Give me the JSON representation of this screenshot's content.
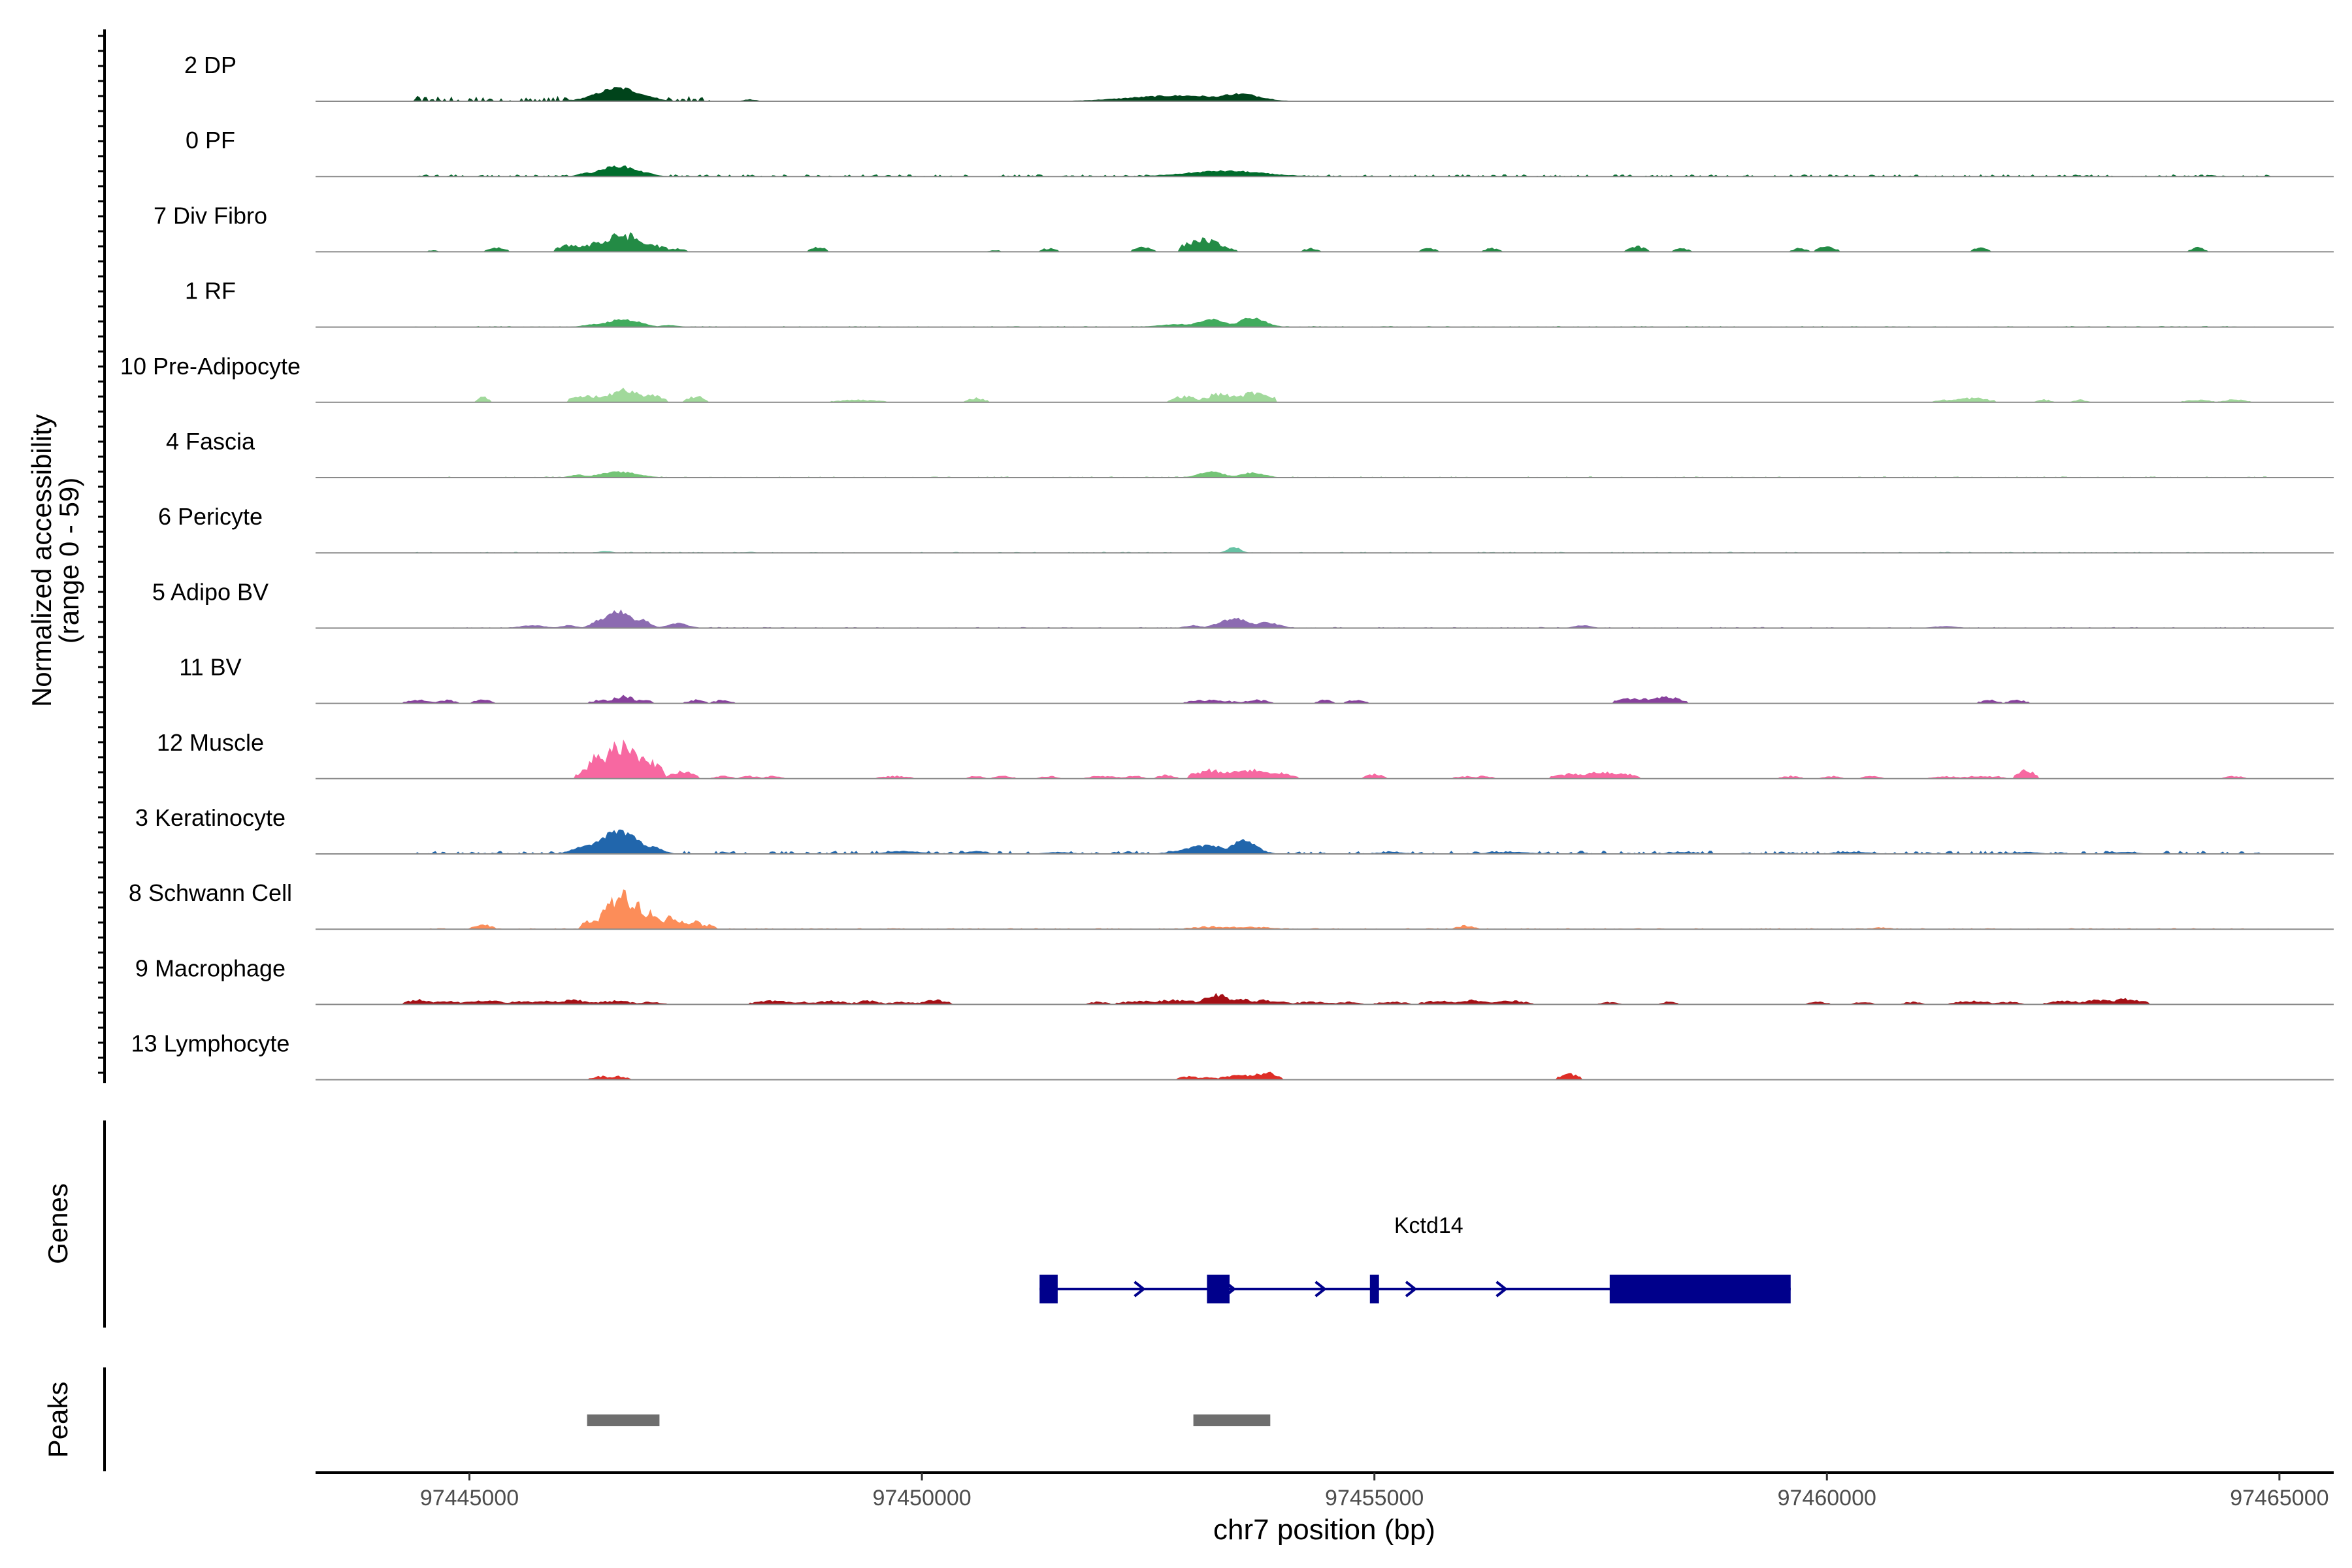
{
  "chart_data": {
    "type": "area",
    "title": "",
    "ylabel_line1": "Normalized accessibility",
    "ylabel_line2": "(range 0 - 59)",
    "xlabel": "chr7 position (bp)",
    "xlim": [
      97443300,
      97465600
    ],
    "ylim": [
      0,
      59
    ],
    "x_ticks": [
      97445000,
      97450000,
      97455000,
      97460000,
      97465000
    ],
    "x_tick_labels": [
      "97445000",
      "97450000",
      "97455000",
      "97460000",
      "97465000"
    ],
    "grid": false,
    "tracks": [
      {
        "name": "2 DP",
        "color": "#00441b",
        "smooth": true,
        "features": [
          [
            97444400,
            97447700,
            5
          ],
          [
            97446650,
            500,
            14
          ],
          [
            97446400,
            200,
            6
          ],
          [
            97446950,
            250,
            6
          ],
          [
            97452850,
            1200,
            6
          ],
          [
            97453500,
            500,
            8
          ],
          [
            97452400,
            200,
            2
          ],
          [
            97448100,
            150,
            2
          ]
        ]
      },
      {
        "name": "0 PF",
        "color": "#006d2c",
        "smooth": true,
        "features": [
          [
            97444400,
            97464900,
            2
          ],
          [
            97446650,
            450,
            11
          ],
          [
            97446300,
            200,
            4
          ],
          [
            97446950,
            200,
            4
          ],
          [
            97453350,
            900,
            6
          ],
          [
            97453600,
            300,
            4
          ]
        ]
      },
      {
        "name": "7 Div Fibro",
        "color": "#238b45",
        "smooth": false,
        "features": [
          [
            97446150,
            250,
            8
          ],
          [
            97446700,
            300,
            20
          ],
          [
            97446400,
            200,
            10
          ],
          [
            97447000,
            250,
            8
          ],
          [
            97447300,
            120,
            4
          ],
          [
            97445300,
            150,
            5
          ],
          [
            97448850,
            120,
            6
          ],
          [
            97453100,
            300,
            14
          ],
          [
            97453300,
            200,
            6
          ],
          [
            97452450,
            150,
            5
          ],
          [
            97451400,
            120,
            4
          ],
          [
            97454300,
            120,
            4
          ],
          [
            97455600,
            120,
            4
          ],
          [
            97456300,
            120,
            4
          ],
          [
            97457900,
            150,
            6
          ],
          [
            97458400,
            120,
            4
          ],
          [
            97459700,
            120,
            4
          ],
          [
            97460000,
            150,
            6
          ],
          [
            97461700,
            120,
            5
          ],
          [
            97464100,
            120,
            5
          ],
          [
            97444600,
            80,
            2
          ],
          [
            97450800,
            100,
            2
          ]
        ]
      },
      {
        "name": "1 RF",
        "color": "#41ab5d",
        "smooth": true,
        "features": [
          [
            97444400,
            97464900,
            1
          ],
          [
            97446700,
            400,
            8
          ],
          [
            97446400,
            300,
            3
          ],
          [
            97453200,
            350,
            8
          ],
          [
            97453650,
            300,
            10
          ],
          [
            97452850,
            500,
            3
          ],
          [
            97447200,
            200,
            2
          ]
        ]
      },
      {
        "name": "10 Pre-Adipocyte",
        "color": "#a1d99b",
        "smooth": false,
        "features": [
          [
            97446700,
            300,
            14
          ],
          [
            97446300,
            250,
            8
          ],
          [
            97447000,
            200,
            8
          ],
          [
            97446500,
            150,
            6
          ],
          [
            97447500,
            150,
            7
          ],
          [
            97445150,
            100,
            6
          ],
          [
            97449300,
            350,
            3
          ],
          [
            97450600,
            150,
            5
          ],
          [
            97452900,
            200,
            7
          ],
          [
            97453300,
            250,
            10
          ],
          [
            97453700,
            250,
            12
          ],
          [
            97453500,
            150,
            8
          ],
          [
            97461600,
            300,
            5
          ],
          [
            97461300,
            150,
            3
          ],
          [
            97462400,
            120,
            3
          ],
          [
            97462800,
            120,
            3
          ],
          [
            97464100,
            200,
            3
          ],
          [
            97464500,
            200,
            3
          ]
        ]
      },
      {
        "name": "4 Fascia",
        "color": "#74c476",
        "smooth": true,
        "features": [
          [
            97444400,
            97464900,
            1
          ],
          [
            97446650,
            450,
            6
          ],
          [
            97446200,
            200,
            3
          ],
          [
            97453200,
            300,
            6
          ],
          [
            97453650,
            300,
            5
          ]
        ]
      },
      {
        "name": "6 Pericyte",
        "color": "#66c2a4",
        "smooth": true,
        "features": [
          [
            97444400,
            97464900,
            1
          ],
          [
            97453450,
            150,
            6
          ],
          [
            97446500,
            150,
            2
          ],
          [
            97448100,
            150,
            1
          ]
        ]
      },
      {
        "name": "5 Adipo BV",
        "color": "#8c6bb1",
        "smooth": true,
        "features": [
          [
            97444800,
            97464900,
            1
          ],
          [
            97446650,
            300,
            18
          ],
          [
            97446450,
            200,
            9
          ],
          [
            97446900,
            200,
            9
          ],
          [
            97447300,
            250,
            5
          ],
          [
            97445700,
            300,
            3
          ],
          [
            97446100,
            200,
            3
          ],
          [
            97453450,
            350,
            10
          ],
          [
            97453800,
            300,
            6
          ],
          [
            97453000,
            200,
            3
          ],
          [
            97457300,
            200,
            3
          ],
          [
            97461300,
            300,
            2
          ]
        ]
      },
      {
        "name": "11 BV",
        "color": "#88419d",
        "smooth": false,
        "features": [
          [
            97444450,
            200,
            4
          ],
          [
            97444750,
            150,
            4
          ],
          [
            97445150,
            150,
            4
          ],
          [
            97446700,
            200,
            8
          ],
          [
            97446450,
            150,
            4
          ],
          [
            97446900,
            150,
            5
          ],
          [
            97447500,
            150,
            4
          ],
          [
            97447800,
            150,
            4
          ],
          [
            97453200,
            350,
            4
          ],
          [
            97453700,
            200,
            4
          ],
          [
            97454450,
            120,
            4
          ],
          [
            97454800,
            150,
            4
          ],
          [
            97457900,
            300,
            6
          ],
          [
            97458200,
            300,
            7
          ],
          [
            97461800,
            150,
            4
          ],
          [
            97462100,
            150,
            4
          ]
        ]
      },
      {
        "name": "12 Muscle",
        "color": "#f768a1",
        "smooth": false,
        "features": [
          [
            97446700,
            300,
            40
          ],
          [
            97446450,
            200,
            28
          ],
          [
            97446950,
            250,
            22
          ],
          [
            97446300,
            150,
            10
          ],
          [
            97447350,
            200,
            8
          ],
          [
            97447800,
            150,
            3
          ],
          [
            97448100,
            150,
            3
          ],
          [
            97448350,
            150,
            3
          ],
          [
            97449700,
            250,
            3
          ],
          [
            97450600,
            120,
            3
          ],
          [
            97450900,
            150,
            3
          ],
          [
            97451400,
            150,
            3
          ],
          [
            97452000,
            250,
            3
          ],
          [
            97452350,
            150,
            3
          ],
          [
            97452700,
            150,
            4
          ],
          [
            97453200,
            300,
            10
          ],
          [
            97453600,
            350,
            10
          ],
          [
            97453950,
            250,
            6
          ],
          [
            97455000,
            150,
            5
          ],
          [
            97456000,
            150,
            3
          ],
          [
            97456200,
            150,
            3
          ],
          [
            97457200,
            300,
            6
          ],
          [
            97457500,
            300,
            8
          ],
          [
            97457750,
            200,
            6
          ],
          [
            97459600,
            150,
            3
          ],
          [
            97460050,
            150,
            3
          ],
          [
            97460500,
            150,
            3
          ],
          [
            97461300,
            200,
            3
          ],
          [
            97461650,
            200,
            3
          ],
          [
            97461850,
            150,
            3
          ],
          [
            97462200,
            150,
            10
          ],
          [
            97464500,
            150,
            3
          ]
        ]
      },
      {
        "name": "3 Keratinocyte",
        "color": "#2166ac",
        "smooth": true,
        "features": [
          [
            97444400,
            97464900,
            3
          ],
          [
            97446650,
            450,
            24
          ],
          [
            97446300,
            300,
            9
          ],
          [
            97447000,
            250,
            8
          ],
          [
            97453550,
            300,
            14
          ],
          [
            97453150,
            500,
            9
          ],
          [
            97452900,
            300,
            4
          ],
          [
            97449800,
            400,
            3
          ],
          [
            97450600,
            200,
            3
          ],
          [
            97451500,
            300,
            2
          ],
          [
            97455200,
            300,
            2
          ],
          [
            97456500,
            500,
            2
          ],
          [
            97458400,
            300,
            2
          ],
          [
            97460300,
            400,
            2
          ],
          [
            97462200,
            300,
            2
          ],
          [
            97463300,
            300,
            2
          ]
        ]
      },
      {
        "name": "8 Schwann Cell",
        "color": "#fc8d59",
        "smooth": false,
        "features": [
          [
            97444400,
            97464900,
            1
          ],
          [
            97446350,
            150,
            10
          ],
          [
            97446550,
            120,
            35
          ],
          [
            97446700,
            130,
            45
          ],
          [
            97446850,
            120,
            30
          ],
          [
            97446980,
            100,
            22
          ],
          [
            97447100,
            100,
            12
          ],
          [
            97447230,
            100,
            16
          ],
          [
            97447330,
            80,
            10
          ],
          [
            97447480,
            150,
            9
          ],
          [
            97447650,
            100,
            5
          ],
          [
            97445150,
            150,
            5
          ],
          [
            97453200,
            350,
            3
          ],
          [
            97453600,
            400,
            3
          ],
          [
            97456000,
            150,
            4
          ],
          [
            97460600,
            150,
            2
          ]
        ]
      },
      {
        "name": "9 Macrophage",
        "color": "#a50f15",
        "smooth": false,
        "features": [
          [
            97444450,
            200,
            6
          ],
          [
            97444750,
            250,
            4
          ],
          [
            97445050,
            200,
            4
          ],
          [
            97445250,
            200,
            4
          ],
          [
            97445600,
            250,
            4
          ],
          [
            97445850,
            250,
            4
          ],
          [
            97446150,
            300,
            5
          ],
          [
            97446600,
            300,
            4
          ],
          [
            97447000,
            200,
            3
          ],
          [
            97448350,
            300,
            4
          ],
          [
            97448700,
            150,
            3
          ],
          [
            97449000,
            250,
            4
          ],
          [
            97449400,
            200,
            4
          ],
          [
            97449800,
            250,
            3
          ],
          [
            97450150,
            200,
            5
          ],
          [
            97451950,
            150,
            3
          ],
          [
            97452400,
            300,
            4
          ],
          [
            97452800,
            400,
            5
          ],
          [
            97453250,
            200,
            12
          ],
          [
            97453500,
            300,
            6
          ],
          [
            97453800,
            300,
            5
          ],
          [
            97454300,
            300,
            3
          ],
          [
            97454700,
            200,
            3
          ],
          [
            97455200,
            250,
            3
          ],
          [
            97455700,
            250,
            4
          ],
          [
            97456100,
            300,
            5
          ],
          [
            97456500,
            300,
            4
          ],
          [
            97457600,
            150,
            3
          ],
          [
            97458250,
            120,
            3
          ],
          [
            97459900,
            150,
            3
          ],
          [
            97460400,
            150,
            3
          ],
          [
            97460950,
            150,
            3
          ],
          [
            97461600,
            300,
            4
          ],
          [
            97462000,
            200,
            3
          ],
          [
            97462650,
            300,
            4
          ],
          [
            97463000,
            250,
            5
          ],
          [
            97463300,
            300,
            6
          ]
        ]
      },
      {
        "name": "13 Lymphocyte",
        "color": "#de2d26",
        "smooth": false,
        "features": [
          [
            97446450,
            150,
            4
          ],
          [
            97446650,
            150,
            4
          ],
          [
            97452950,
            150,
            4
          ],
          [
            97453150,
            150,
            3
          ],
          [
            97453500,
            250,
            6
          ],
          [
            97453800,
            200,
            8
          ],
          [
            97457150,
            150,
            7
          ],
          [
            97457100,
            100,
            4
          ]
        ]
      }
    ],
    "genes": [
      {
        "name": "Kctd14",
        "strand": "+",
        "start": 97451300,
        "end": 97459600,
        "exons": [
          [
            97451300,
            97451500
          ],
          [
            97453150,
            97453400
          ],
          [
            97454950,
            97455050
          ],
          [
            97457600,
            97459600
          ]
        ]
      }
    ],
    "peaks": [
      [
        97446300,
        97447100
      ],
      [
        97453000,
        97453850
      ]
    ],
    "panel_labels": {
      "genes": "Genes",
      "peaks": "Peaks"
    }
  }
}
